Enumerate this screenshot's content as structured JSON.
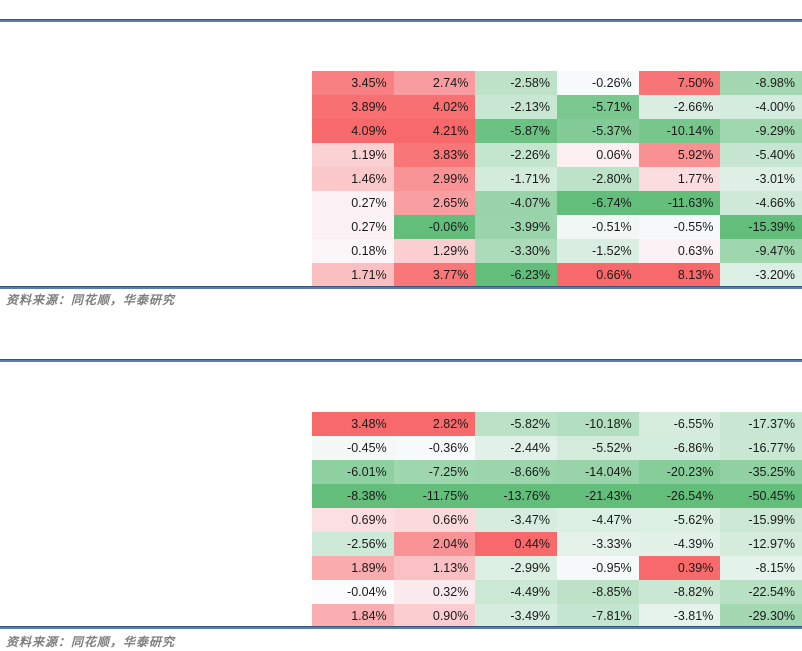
{
  "colors": {
    "scale_max_red": "#F8696B",
    "scale_mid_white": "#FCFCFF",
    "scale_min_green": "#63BE7B",
    "rule_blue": "#5B7DA9",
    "rule_dark": "#35547E",
    "source_text": "#7F7F7F",
    "cell_text": "#1A1A1A"
  },
  "chart_data": [
    {
      "type": "heatmap",
      "unit": "%",
      "value_format": "0.00%",
      "color_scale": {
        "per_column": true,
        "midpoint_value": 0,
        "max_color": "#F8696B",
        "mid_color": "#FCFCFF",
        "min_color": "#63BE7B"
      },
      "rows": [
        [
          3.45,
          2.74,
          -2.58,
          -0.26,
          7.5,
          -8.98
        ],
        [
          3.89,
          4.02,
          -2.13,
          -5.71,
          -2.66,
          -4.0
        ],
        [
          4.09,
          4.21,
          -5.87,
          -5.37,
          -10.14,
          -9.29
        ],
        [
          1.19,
          3.83,
          -2.26,
          0.06,
          5.92,
          -5.4
        ],
        [
          1.46,
          2.99,
          -1.71,
          -2.8,
          1.77,
          -3.01
        ],
        [
          0.27,
          2.65,
          -4.07,
          -6.74,
          -11.63,
          -4.66
        ],
        [
          0.27,
          -0.06,
          -3.99,
          -0.51,
          -0.55,
          -15.39
        ],
        [
          0.18,
          1.29,
          -3.3,
          -1.52,
          0.63,
          -9.47
        ],
        [
          1.71,
          3.77,
          -6.23,
          0.66,
          8.13,
          -3.2
        ]
      ],
      "source_note": "资料来源：同花顺，华泰研究"
    },
    {
      "type": "heatmap",
      "unit": "%",
      "value_format": "0.00%",
      "color_scale": {
        "per_column": true,
        "midpoint_value": 0,
        "max_color": "#F8696B",
        "mid_color": "#FCFCFF",
        "min_color": "#63BE7B"
      },
      "rows": [
        [
          3.48,
          2.82,
          -5.82,
          -10.18,
          -6.55,
          -17.37
        ],
        [
          -0.45,
          -0.36,
          -2.44,
          -5.52,
          -6.86,
          -16.77
        ],
        [
          -6.01,
          -7.25,
          -8.66,
          -14.04,
          -20.23,
          -35.25
        ],
        [
          -8.38,
          -11.75,
          -13.76,
          -21.43,
          -26.54,
          -50.45
        ],
        [
          0.69,
          0.66,
          -3.47,
          -4.47,
          -5.62,
          -15.99
        ],
        [
          -2.56,
          2.04,
          0.44,
          -3.33,
          -4.39,
          -12.97
        ],
        [
          1.89,
          1.13,
          -2.99,
          -0.95,
          0.39,
          -8.15
        ],
        [
          -0.04,
          0.32,
          -4.49,
          -8.85,
          -8.82,
          -22.54
        ],
        [
          1.84,
          0.9,
          -3.49,
          -7.81,
          -3.81,
          -29.3
        ]
      ],
      "source_note": "资料来源：同花顺，华泰研究"
    }
  ]
}
